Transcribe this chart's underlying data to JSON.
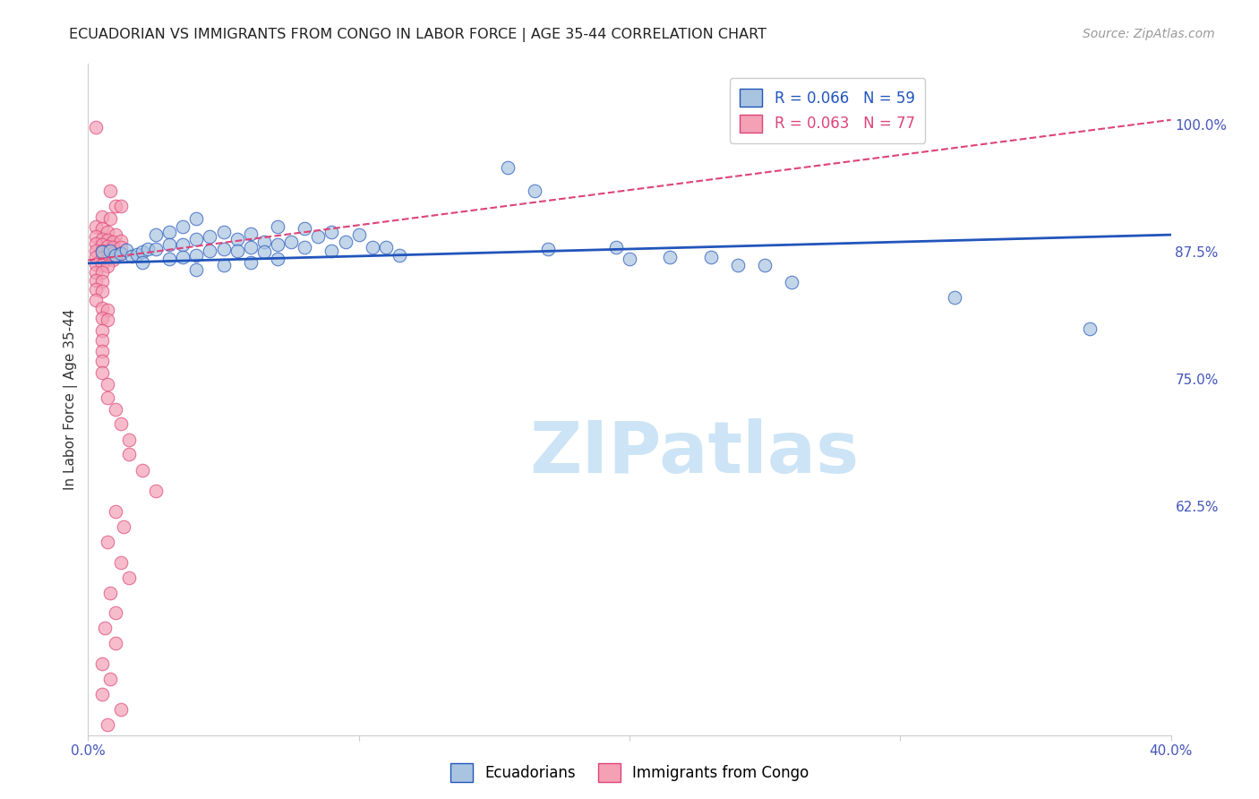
{
  "title": "ECUADORIAN VS IMMIGRANTS FROM CONGO IN LABOR FORCE | AGE 35-44 CORRELATION CHART",
  "source": "Source: ZipAtlas.com",
  "ylabel": "In Labor Force | Age 35-44",
  "xlim": [
    0.0,
    0.4
  ],
  "ylim": [
    0.4,
    1.06
  ],
  "ytick_labels_right": [
    "100.0%",
    "87.5%",
    "75.0%",
    "62.5%"
  ],
  "ytick_vals_right": [
    1.0,
    0.875,
    0.75,
    0.625
  ],
  "R_blue": 0.066,
  "N_blue": 59,
  "R_pink": 0.063,
  "N_pink": 77,
  "blue_color": "#a8c4e0",
  "pink_color": "#f4a0b5",
  "blue_line_color": "#2255bb",
  "pink_line_color": "#dd4477",
  "blue_trend": [
    0.0,
    0.4,
    0.864,
    0.892
  ],
  "pink_trend": [
    0.0,
    0.4,
    0.867,
    1.005
  ],
  "blue_scatter": [
    [
      0.005,
      0.875
    ],
    [
      0.008,
      0.876
    ],
    [
      0.01,
      0.872
    ],
    [
      0.012,
      0.874
    ],
    [
      0.014,
      0.877
    ],
    [
      0.016,
      0.871
    ],
    [
      0.018,
      0.873
    ],
    [
      0.02,
      0.875
    ],
    [
      0.022,
      0.878
    ],
    [
      0.02,
      0.865
    ],
    [
      0.025,
      0.892
    ],
    [
      0.025,
      0.878
    ],
    [
      0.03,
      0.895
    ],
    [
      0.03,
      0.882
    ],
    [
      0.03,
      0.868
    ],
    [
      0.035,
      0.9
    ],
    [
      0.035,
      0.882
    ],
    [
      0.035,
      0.87
    ],
    [
      0.04,
      0.908
    ],
    [
      0.04,
      0.888
    ],
    [
      0.04,
      0.872
    ],
    [
      0.04,
      0.858
    ],
    [
      0.045,
      0.89
    ],
    [
      0.045,
      0.876
    ],
    [
      0.05,
      0.895
    ],
    [
      0.05,
      0.878
    ],
    [
      0.05,
      0.862
    ],
    [
      0.055,
      0.888
    ],
    [
      0.055,
      0.876
    ],
    [
      0.06,
      0.893
    ],
    [
      0.06,
      0.88
    ],
    [
      0.06,
      0.865
    ],
    [
      0.065,
      0.885
    ],
    [
      0.065,
      0.875
    ],
    [
      0.07,
      0.9
    ],
    [
      0.07,
      0.882
    ],
    [
      0.07,
      0.868
    ],
    [
      0.075,
      0.885
    ],
    [
      0.08,
      0.898
    ],
    [
      0.08,
      0.88
    ],
    [
      0.085,
      0.89
    ],
    [
      0.09,
      0.895
    ],
    [
      0.09,
      0.876
    ],
    [
      0.095,
      0.885
    ],
    [
      0.1,
      0.892
    ],
    [
      0.105,
      0.88
    ],
    [
      0.11,
      0.88
    ],
    [
      0.115,
      0.872
    ],
    [
      0.155,
      0.958
    ],
    [
      0.165,
      0.935
    ],
    [
      0.17,
      0.878
    ],
    [
      0.195,
      0.88
    ],
    [
      0.2,
      0.868
    ],
    [
      0.215,
      0.87
    ],
    [
      0.23,
      0.87
    ],
    [
      0.24,
      0.862
    ],
    [
      0.25,
      0.862
    ],
    [
      0.26,
      0.845
    ],
    [
      0.32,
      0.83
    ],
    [
      0.37,
      0.8
    ]
  ],
  "pink_scatter": [
    [
      0.003,
      0.998
    ],
    [
      0.008,
      0.935
    ],
    [
      0.01,
      0.92
    ],
    [
      0.012,
      0.92
    ],
    [
      0.005,
      0.91
    ],
    [
      0.008,
      0.908
    ],
    [
      0.003,
      0.9
    ],
    [
      0.005,
      0.898
    ],
    [
      0.007,
      0.895
    ],
    [
      0.01,
      0.892
    ],
    [
      0.003,
      0.89
    ],
    [
      0.005,
      0.888
    ],
    [
      0.007,
      0.887
    ],
    [
      0.009,
      0.885
    ],
    [
      0.012,
      0.886
    ],
    [
      0.003,
      0.883
    ],
    [
      0.005,
      0.882
    ],
    [
      0.007,
      0.881
    ],
    [
      0.009,
      0.88
    ],
    [
      0.012,
      0.88
    ],
    [
      0.003,
      0.876
    ],
    [
      0.005,
      0.876
    ],
    [
      0.007,
      0.875
    ],
    [
      0.009,
      0.874
    ],
    [
      0.012,
      0.874
    ],
    [
      0.003,
      0.87
    ],
    [
      0.005,
      0.869
    ],
    [
      0.007,
      0.868
    ],
    [
      0.009,
      0.867
    ],
    [
      0.003,
      0.863
    ],
    [
      0.005,
      0.862
    ],
    [
      0.007,
      0.861
    ],
    [
      0.003,
      0.855
    ],
    [
      0.005,
      0.855
    ],
    [
      0.003,
      0.847
    ],
    [
      0.005,
      0.846
    ],
    [
      0.003,
      0.838
    ],
    [
      0.005,
      0.837
    ],
    [
      0.003,
      0.828
    ],
    [
      0.005,
      0.82
    ],
    [
      0.007,
      0.818
    ],
    [
      0.005,
      0.81
    ],
    [
      0.007,
      0.808
    ],
    [
      0.005,
      0.798
    ],
    [
      0.005,
      0.788
    ],
    [
      0.005,
      0.778
    ],
    [
      0.005,
      0.768
    ],
    [
      0.005,
      0.756
    ],
    [
      0.007,
      0.745
    ],
    [
      0.007,
      0.732
    ],
    [
      0.01,
      0.72
    ],
    [
      0.012,
      0.706
    ],
    [
      0.015,
      0.69
    ],
    [
      0.015,
      0.676
    ],
    [
      0.02,
      0.66
    ],
    [
      0.025,
      0.64
    ],
    [
      0.01,
      0.62
    ],
    [
      0.013,
      0.605
    ],
    [
      0.007,
      0.59
    ],
    [
      0.012,
      0.57
    ],
    [
      0.015,
      0.555
    ],
    [
      0.008,
      0.54
    ],
    [
      0.01,
      0.52
    ],
    [
      0.006,
      0.505
    ],
    [
      0.01,
      0.49
    ],
    [
      0.005,
      0.47
    ],
    [
      0.008,
      0.455
    ],
    [
      0.005,
      0.44
    ],
    [
      0.012,
      0.425
    ],
    [
      0.007,
      0.41
    ]
  ],
  "watermark": "ZIPatlas",
  "watermark_color": "#cce4f5",
  "grid_color": "#cccccc"
}
